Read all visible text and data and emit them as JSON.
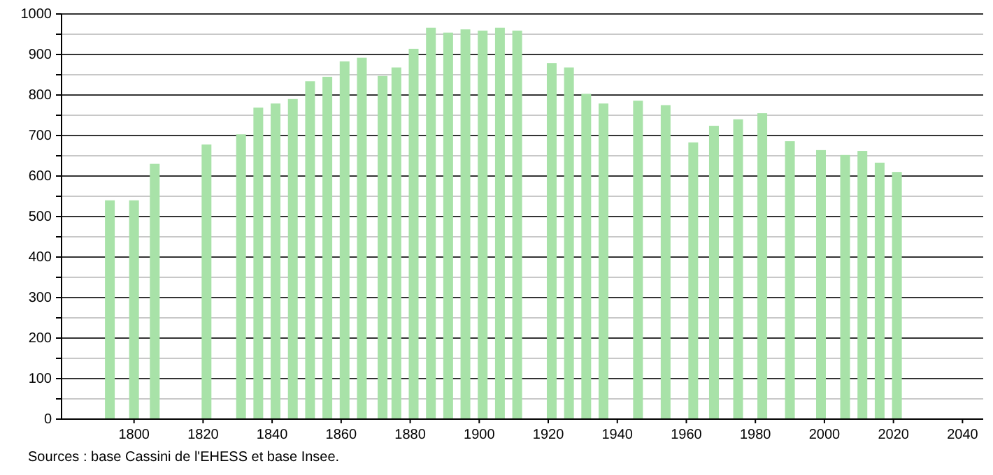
{
  "chart_data": {
    "type": "bar",
    "x": [
      1793,
      1800,
      1806,
      1821,
      1831,
      1836,
      1841,
      1846,
      1851,
      1856,
      1861,
      1866,
      1872,
      1876,
      1881,
      1886,
      1891,
      1896,
      1901,
      1906,
      1911,
      1921,
      1926,
      1931,
      1936,
      1946,
      1954,
      1962,
      1968,
      1975,
      1982,
      1990,
      1999,
      2006,
      2011,
      2016,
      2021
    ],
    "values": [
      540,
      540,
      630,
      678,
      703,
      769,
      779,
      790,
      834,
      845,
      883,
      892,
      847,
      868,
      914,
      966,
      954,
      962,
      959,
      966,
      959,
      879,
      868,
      803,
      779,
      786,
      775,
      683,
      724,
      740,
      755,
      686,
      664,
      652,
      662,
      633,
      610
    ],
    "color": "#a8e2a8",
    "xlim": [
      1779,
      2046
    ],
    "xticks": [
      1800,
      1820,
      1840,
      1860,
      1880,
      1900,
      1920,
      1940,
      1960,
      1980,
      2000,
      2020,
      2040
    ],
    "ylim": [
      0,
      1000
    ],
    "yticks": [
      0,
      {
        "value": 50,
        "label": null
      },
      100,
      {
        "value": 150,
        "label": null
      },
      200,
      {
        "value": 250,
        "label": null
      },
      300,
      {
        "value": 350,
        "label": null
      },
      400,
      {
        "value": 450,
        "label": null
      },
      500,
      {
        "value": 550,
        "label": null
      },
      600,
      {
        "value": 650,
        "label": null
      },
      700,
      {
        "value": 750,
        "label": null
      },
      800,
      {
        "value": 850,
        "label": null
      },
      900,
      {
        "value": 950,
        "label": null
      },
      1000
    ],
    "grid": "y",
    "annotations": [
      "Sources : base Cassini de l'EHESS et base Insee."
    ]
  }
}
